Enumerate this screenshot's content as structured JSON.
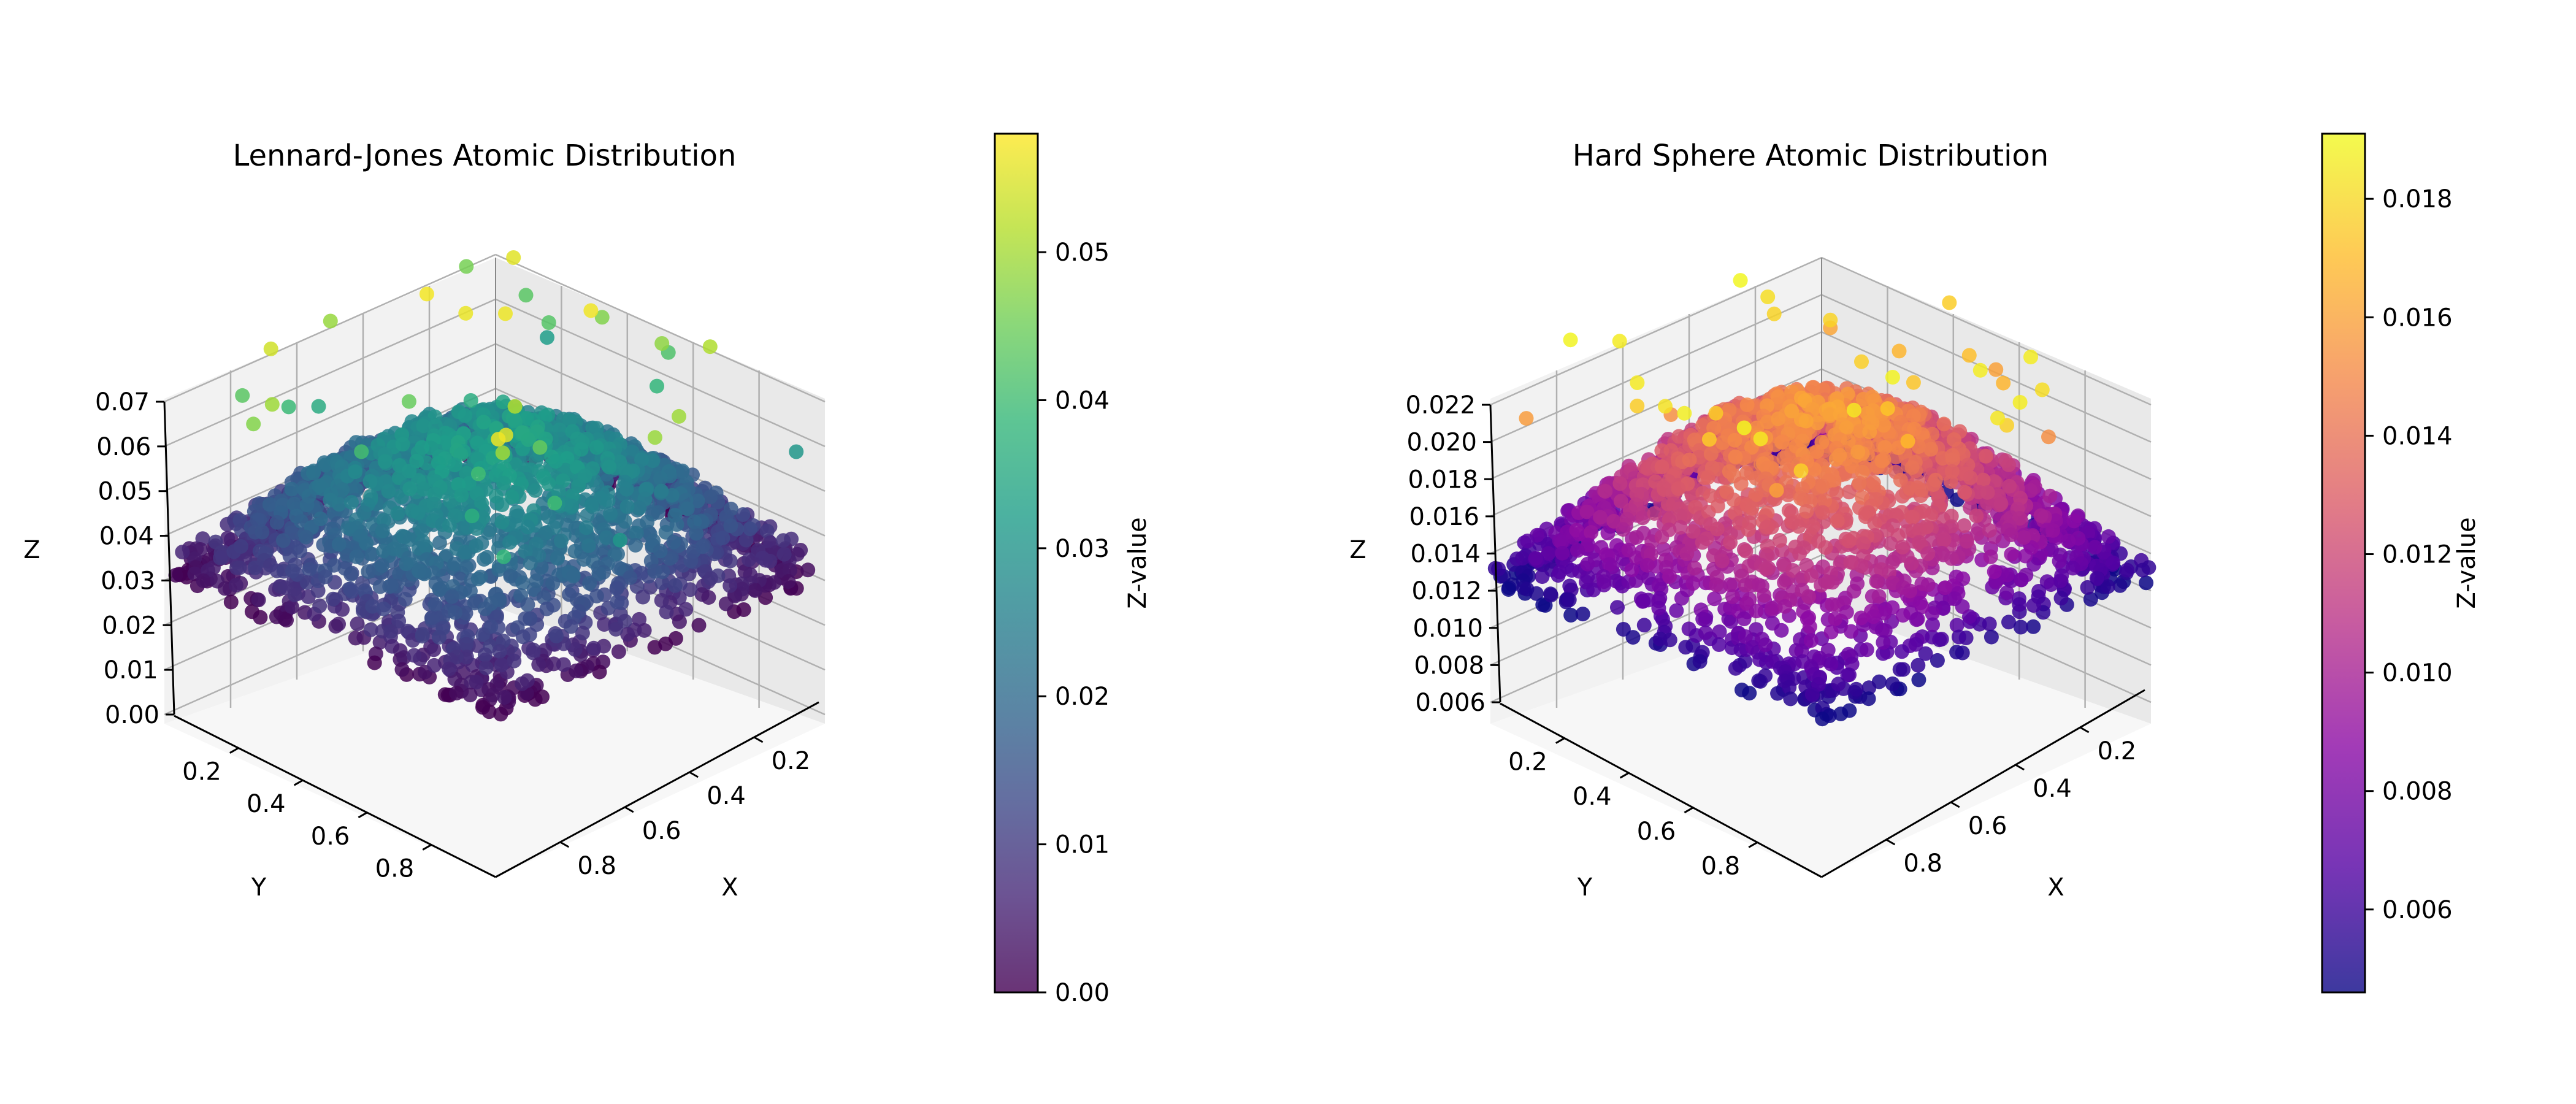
{
  "chart_data": [
    {
      "type": "scatter3d",
      "title": "Lennard-Jones Atomic Distribution",
      "xlabel": "X",
      "ylabel": "Y",
      "zlabel": "Z",
      "xticks": [
        "0.2",
        "0.4",
        "0.6",
        "0.8"
      ],
      "yticks": [
        "0.2",
        "0.4",
        "0.6",
        "0.8"
      ],
      "zticks": [
        "0.00",
        "0.01",
        "0.02",
        "0.03",
        "0.04",
        "0.05",
        "0.06",
        "0.07"
      ],
      "xlim": [
        0,
        1
      ],
      "ylim": [
        0,
        1
      ],
      "zlim": [
        0,
        0.07
      ],
      "colormap": "viridis",
      "colorbar": {
        "label": "Z-value",
        "ticks": [
          "0.00",
          "0.01",
          "0.02",
          "0.03",
          "0.04",
          "0.05"
        ],
        "range": [
          0,
          0.058
        ]
      },
      "distribution": {
        "n_points": 5000,
        "peak_z_at_center": 0.03,
        "max_z": 0.058,
        "min_z": 0.0
      },
      "grid": true
    },
    {
      "type": "scatter3d",
      "title": "Hard Sphere Atomic Distribution",
      "xlabel": "X",
      "ylabel": "Y",
      "zlabel": "Z",
      "xticks": [
        "0.2",
        "0.4",
        "0.6",
        "0.8"
      ],
      "yticks": [
        "0.2",
        "0.4",
        "0.6",
        "0.8"
      ],
      "zticks": [
        "0.006",
        "0.008",
        "0.010",
        "0.012",
        "0.014",
        "0.016",
        "0.018",
        "0.020",
        "0.022"
      ],
      "xlim": [
        0,
        1
      ],
      "ylim": [
        0,
        1
      ],
      "zlim": [
        0.005,
        0.023
      ],
      "colormap": "plasma",
      "colorbar": {
        "label": "Z-value",
        "ticks": [
          "0.006",
          "0.008",
          "0.010",
          "0.012",
          "0.014",
          "0.016",
          "0.018"
        ],
        "range": [
          0.0046,
          0.0191
        ]
      },
      "distribution": {
        "n_points": 5000,
        "peak_z_at_center": 0.015,
        "max_z": 0.0191,
        "min_z": 0.0046
      },
      "grid": true
    }
  ]
}
